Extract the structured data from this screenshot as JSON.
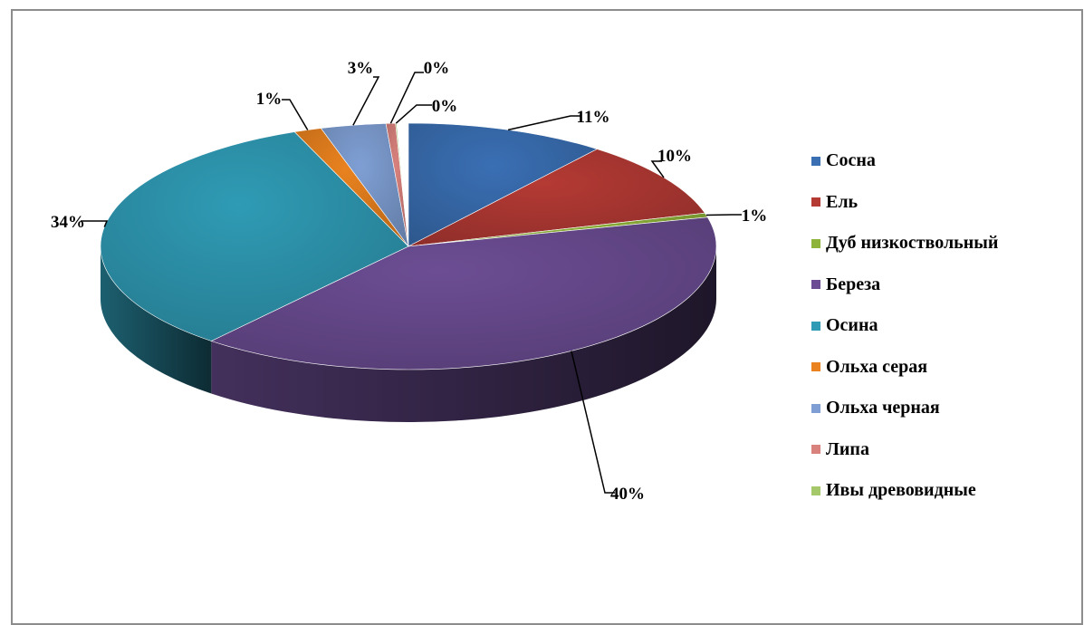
{
  "chart_data": {
    "type": "pie",
    "style": "3d",
    "legend_position": "right",
    "slices": [
      {
        "name": "Сосна",
        "value": 11,
        "label": "11%",
        "color": "#3a6fb4"
      },
      {
        "name": "Ель",
        "value": 10,
        "label": "10%",
        "color": "#b53a34"
      },
      {
        "name": "Дуб низкоствольный",
        "value": 1,
        "label": "1%",
        "color": "#8fb43a"
      },
      {
        "name": "Береза",
        "value": 40,
        "label": "40%",
        "color": "#6c4d94"
      },
      {
        "name": "Осина",
        "value": 34,
        "label": "34%",
        "color": "#2f9bb5"
      },
      {
        "name": "Ольха серая",
        "value": 1,
        "label": "1%",
        "color": "#e9821f"
      },
      {
        "name": "Ольха черная",
        "value": 3,
        "label": "3%",
        "color": "#7f9fd4"
      },
      {
        "name": "Липа",
        "value": 0,
        "label": "0%",
        "color": "#d9817c"
      },
      {
        "name": "Ивы древовидные",
        "value": 0,
        "label": "0%",
        "color": "#a5c86b"
      }
    ]
  }
}
